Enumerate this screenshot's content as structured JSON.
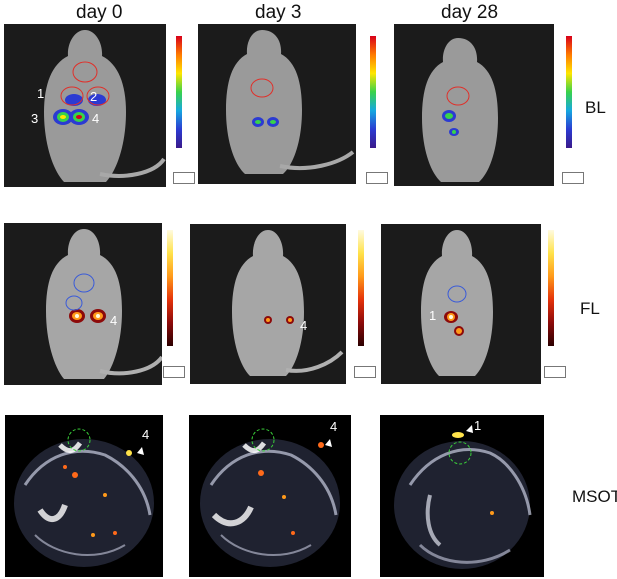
{
  "columns": [
    "day 0",
    "day 3",
    "day 28"
  ],
  "rows": [
    "BL",
    "FL",
    "MSOT"
  ],
  "markers": {
    "bl_day0": [
      "1",
      "2",
      "3",
      "4"
    ],
    "fl_day0": "4",
    "fl_day3": "4",
    "fl_day28": "1",
    "msot_day0": "4",
    "msot_day3": "4",
    "msot_day28": "1"
  },
  "colors": {
    "bl_scale": [
      "#d8001a",
      "#ffe600",
      "#39d24a",
      "#2b3bd2"
    ],
    "fl_scale": [
      "#fffbe0",
      "#ff9a1a",
      "#8c0a0a"
    ],
    "roi_bl": "#e0302a",
    "roi_fl": "#3a5bd8",
    "tumor_outline": "#3ad13a"
  }
}
